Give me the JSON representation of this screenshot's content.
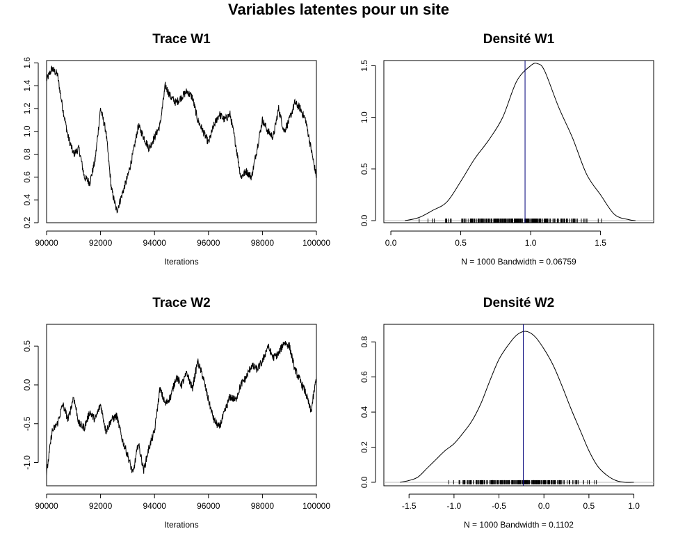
{
  "title": "Variables latentes pour un site",
  "chart_data": [
    {
      "type": "line",
      "title": "Trace W1",
      "xlabel": "Iterations",
      "ylabel": "",
      "xlim": [
        90000,
        100000
      ],
      "ylim": [
        0.2,
        1.62
      ],
      "xticks": [
        "90000",
        "92000",
        "94000",
        "96000",
        "98000",
        "100000"
      ],
      "yticks": [
        "0.2",
        "0.4",
        "0.6",
        "0.8",
        "1.0",
        "1.2",
        "1.4",
        "1.6"
      ],
      "grid": false,
      "x": [
        90000,
        90200,
        90400,
        90600,
        90800,
        91000,
        91200,
        91400,
        91600,
        91800,
        92000,
        92200,
        92400,
        92600,
        92800,
        93000,
        93200,
        93400,
        93600,
        93800,
        94000,
        94200,
        94400,
        94600,
        94800,
        95000,
        95200,
        95400,
        95600,
        95800,
        96000,
        96200,
        96400,
        96600,
        96800,
        97000,
        97200,
        97400,
        97600,
        97800,
        98000,
        98200,
        98400,
        98600,
        98800,
        99000,
        99200,
        99400,
        99600,
        99800,
        100000
      ],
      "y": [
        1.45,
        1.55,
        1.5,
        1.2,
        0.95,
        0.8,
        0.85,
        0.6,
        0.55,
        0.75,
        1.2,
        1.0,
        0.5,
        0.3,
        0.45,
        0.6,
        0.8,
        1.05,
        0.95,
        0.85,
        0.95,
        1.05,
        1.4,
        1.3,
        1.25,
        1.3,
        1.35,
        1.3,
        1.1,
        1.0,
        0.9,
        1.05,
        1.15,
        1.1,
        1.15,
        0.9,
        0.6,
        0.65,
        0.6,
        0.85,
        1.1,
        1.0,
        0.95,
        1.2,
        1.0,
        1.1,
        1.25,
        1.2,
        1.1,
        0.85,
        0.6
      ]
    },
    {
      "type": "line",
      "title": "Densité W1",
      "xlabel": "N = 1000   Bandwidth = 0.06759",
      "ylabel": "",
      "xlim": [
        -0.05,
        1.88
      ],
      "ylim": [
        -0.02,
        1.55
      ],
      "xticks": [
        "0.0",
        "0.5",
        "1.0",
        "1.5"
      ],
      "yticks": [
        "0.0",
        "0.5",
        "1.0",
        "1.5"
      ],
      "grid": false,
      "vline": 0.96,
      "rug_range": [
        0.2,
        1.62
      ],
      "x": [
        0.1,
        0.2,
        0.3,
        0.4,
        0.5,
        0.6,
        0.7,
        0.8,
        0.9,
        1.0,
        1.05,
        1.1,
        1.2,
        1.3,
        1.4,
        1.5,
        1.6,
        1.7,
        1.75
      ],
      "y": [
        0.0,
        0.03,
        0.1,
        0.18,
        0.38,
        0.6,
        0.78,
        1.0,
        1.35,
        1.5,
        1.52,
        1.45,
        1.1,
        0.8,
        0.45,
        0.25,
        0.06,
        0.01,
        0.0
      ]
    },
    {
      "type": "line",
      "title": "Trace W2",
      "xlabel": "Iterations",
      "ylabel": "",
      "xlim": [
        90000,
        100000
      ],
      "ylim": [
        -1.3,
        0.78
      ],
      "xticks": [
        "90000",
        "92000",
        "94000",
        "96000",
        "98000",
        "100000"
      ],
      "yticks": [
        "-1.0",
        "-0.5",
        "0.0",
        "0.5"
      ],
      "grid": false,
      "x": [
        90000,
        90200,
        90400,
        90600,
        90800,
        91000,
        91200,
        91400,
        91600,
        91800,
        92000,
        92200,
        92400,
        92600,
        92800,
        93000,
        93200,
        93400,
        93600,
        93800,
        94000,
        94200,
        94400,
        94600,
        94800,
        95000,
        95200,
        95400,
        95600,
        95800,
        96000,
        96200,
        96400,
        96600,
        96800,
        97000,
        97200,
        97400,
        97600,
        97800,
        98000,
        98200,
        98400,
        98600,
        98800,
        99000,
        99200,
        99400,
        99600,
        99800,
        100000
      ],
      "y": [
        -1.15,
        -0.6,
        -0.5,
        -0.25,
        -0.45,
        -0.15,
        -0.5,
        -0.55,
        -0.35,
        -0.45,
        -0.25,
        -0.6,
        -0.45,
        -0.4,
        -0.7,
        -0.9,
        -1.15,
        -0.75,
        -1.1,
        -0.8,
        -0.6,
        -0.05,
        -0.25,
        -0.15,
        0.1,
        0.0,
        0.15,
        -0.05,
        0.3,
        0.1,
        -0.2,
        -0.45,
        -0.55,
        -0.35,
        -0.15,
        -0.2,
        0.0,
        0.1,
        0.25,
        0.2,
        0.3,
        0.5,
        0.35,
        0.4,
        0.55,
        0.5,
        0.2,
        0.05,
        -0.1,
        -0.35,
        0.1
      ]
    },
    {
      "type": "line",
      "title": "Densité W2",
      "xlabel": "N = 1000   Bandwidth = 0.1102",
      "ylabel": "",
      "xlim": [
        -1.78,
        1.22
      ],
      "ylim": [
        -0.02,
        0.9
      ],
      "xticks": [
        "-1.5",
        "-1.0",
        "-0.5",
        "0.0",
        "0.5",
        "1.0"
      ],
      "yticks": [
        "0.0",
        "0.2",
        "0.4",
        "0.6",
        "0.8"
      ],
      "grid": false,
      "vline": -0.23,
      "rug_range": [
        -1.3,
        0.78
      ],
      "x": [
        -1.6,
        -1.5,
        -1.4,
        -1.3,
        -1.2,
        -1.1,
        -1.0,
        -0.9,
        -0.8,
        -0.7,
        -0.6,
        -0.5,
        -0.4,
        -0.3,
        -0.2,
        -0.1,
        0.0,
        0.1,
        0.2,
        0.3,
        0.4,
        0.5,
        0.6,
        0.7,
        0.8,
        0.9,
        1.0
      ],
      "y": [
        0.0,
        0.01,
        0.03,
        0.08,
        0.13,
        0.18,
        0.22,
        0.28,
        0.35,
        0.45,
        0.58,
        0.7,
        0.78,
        0.84,
        0.86,
        0.83,
        0.76,
        0.67,
        0.55,
        0.42,
        0.3,
        0.18,
        0.09,
        0.04,
        0.01,
        0.0,
        0.0
      ]
    }
  ]
}
